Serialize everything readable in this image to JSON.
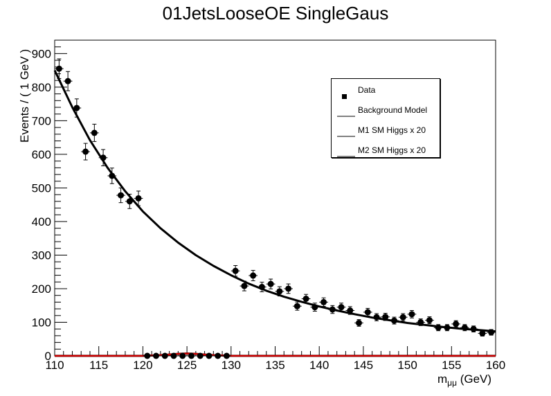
{
  "chart_data": {
    "type": "scatter",
    "title": "01JetsLooseOE SingleGaus",
    "ylabel": "Events / ( 1 GeV )",
    "xlabel": "m",
    "xlabel_sub": "μμ",
    "xlabel_unit": " (GeV)",
    "xlim": [
      110,
      160
    ],
    "ylim": [
      0,
      940
    ],
    "x_ticks": [
      110,
      115,
      120,
      125,
      130,
      135,
      140,
      145,
      150,
      155,
      160
    ],
    "y_ticks": [
      0,
      100,
      200,
      300,
      400,
      500,
      600,
      700,
      800,
      900
    ],
    "grid": false,
    "legend_position": "top-right",
    "series": [
      {
        "name": "Data",
        "kind": "points",
        "color": "#000000",
        "x": [
          110.5,
          111.5,
          112.5,
          113.5,
          114.5,
          115.5,
          116.5,
          117.5,
          118.5,
          119.5,
          120.5,
          121.5,
          122.5,
          123.5,
          124.5,
          125.5,
          126.5,
          127.5,
          128.5,
          129.5,
          130.5,
          131.5,
          132.5,
          133.5,
          134.5,
          135.5,
          136.5,
          137.5,
          138.5,
          139.5,
          140.5,
          141.5,
          142.5,
          143.5,
          144.5,
          145.5,
          146.5,
          147.5,
          148.5,
          149.5,
          150.5,
          151.5,
          152.5,
          153.5,
          154.5,
          155.5,
          156.5,
          157.5,
          158.5,
          159.5
        ],
        "y": [
          855,
          818,
          738,
          608,
          664,
          590,
          536,
          478,
          460,
          469,
          0,
          0,
          0,
          0,
          0,
          0,
          0,
          0,
          0,
          0,
          253,
          208,
          239,
          205,
          214,
          192,
          200,
          148,
          170,
          145,
          160,
          138,
          145,
          135,
          98,
          130,
          115,
          116,
          105,
          115,
          124,
          100,
          106,
          84,
          84,
          95,
          84,
          80,
          67,
          70
        ]
      },
      {
        "name": "Background Model",
        "kind": "line",
        "color": "#000000",
        "x": [
          110,
          112,
          114,
          116,
          118,
          120,
          122,
          124,
          126,
          128,
          130,
          132,
          134,
          136,
          138,
          140,
          142,
          144,
          146,
          148,
          150,
          152,
          154,
          156,
          158,
          160
        ],
        "y": [
          850,
          740,
          642,
          560,
          490,
          430,
          380,
          337,
          300,
          268,
          240,
          215,
          194,
          176,
          161,
          147,
          135,
          124,
          114,
          106,
          98,
          92,
          86,
          81,
          77,
          73
        ]
      },
      {
        "name": "M1 SM Higgs x 20",
        "kind": "line",
        "color": "#000000",
        "x": [
          110,
          120,
          122,
          123,
          124,
          125,
          126,
          127,
          128,
          130,
          160
        ],
        "y": [
          0,
          0,
          2,
          4,
          6,
          7,
          6,
          4,
          2,
          0,
          0
        ]
      },
      {
        "name": "M2 SM Higgs x 20",
        "kind": "line",
        "color": "#cc0000",
        "x": [
          110,
          120,
          122,
          123,
          124,
          125,
          126,
          127,
          128,
          130,
          160
        ],
        "y": [
          0,
          0,
          2,
          4,
          6,
          7,
          6,
          4,
          2,
          0,
          0
        ]
      }
    ]
  },
  "legend": {
    "items": [
      {
        "label": "Data"
      },
      {
        "label": "Background Model"
      },
      {
        "label": "M1 SM Higgs x 20"
      },
      {
        "label": "M2 SM Higgs x 20"
      }
    ]
  }
}
